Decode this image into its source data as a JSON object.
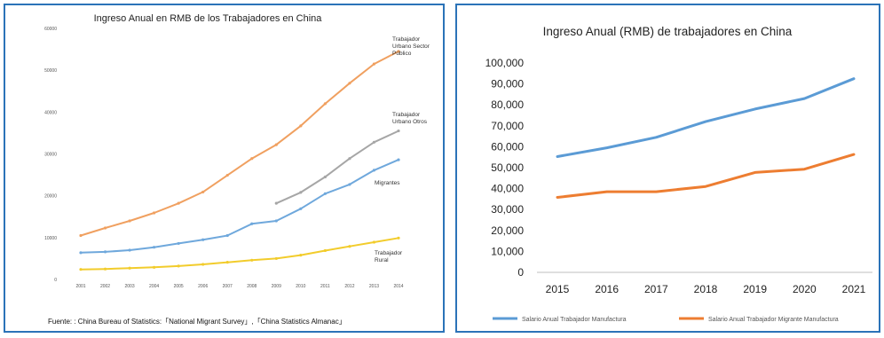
{
  "chart_data": [
    {
      "type": "line",
      "title": "Ingreso Anual en RMB de los Trabajadores en China",
      "x": [
        "2001",
        "2002",
        "2003",
        "2004",
        "2005",
        "2006",
        "2007",
        "2008",
        "2009",
        "2010",
        "2011",
        "2012",
        "2013",
        "2014"
      ],
      "y_ticks": [
        "0",
        "10000",
        "20000",
        "30000",
        "40000",
        "50000",
        "60000"
      ],
      "ylim": [
        0,
        60000
      ],
      "grid": false,
      "source": "Fuente:  : China Bureau of Statistics:「National Migrant Survey」,「China Statistics Almanac」",
      "series": [
        {
          "name": "Trabajador Urbano Sector Público",
          "label_lines": [
            "Trabajador",
            "Urbano Sector",
            "Público"
          ],
          "color": "#f0a060",
          "values": [
            10500,
            12300,
            14000,
            15900,
            18200,
            20900,
            24900,
            28900,
            32200,
            36700,
            42000,
            46900,
            51500,
            54500
          ]
        },
        {
          "name": "Trabajador Urbano Otros",
          "label_lines": [
            "Trabajador",
            "Urbano Otros"
          ],
          "color": "#a6a6a6",
          "values": [
            null,
            null,
            null,
            null,
            null,
            null,
            null,
            null,
            18200,
            20800,
            24500,
            28900,
            32800,
            35500
          ]
        },
        {
          "name": "Migrantes",
          "label_lines": [
            "Migrantes"
          ],
          "color": "#6fa8dc",
          "values": [
            6400,
            6600,
            7000,
            7700,
            8600,
            9500,
            10500,
            13300,
            14000,
            16900,
            20500,
            22700,
            26100,
            28600
          ]
        },
        {
          "name": "Trabajador Rural",
          "label_lines": [
            "Trabajador",
            "Rural"
          ],
          "color": "#f2cc2c",
          "values": [
            2400,
            2500,
            2700,
            2900,
            3200,
            3600,
            4100,
            4600,
            5000,
            5800,
            6900,
            7900,
            8900,
            9900
          ]
        }
      ]
    },
    {
      "type": "line",
      "title": "Ingreso Anual (RMB) de trabajadores en China",
      "x": [
        "2015",
        "2016",
        "2017",
        "2018",
        "2019",
        "2020",
        "2021"
      ],
      "y_ticks": [
        "0",
        "10,000",
        "20,000",
        "30,000",
        "40,000",
        "50,000",
        "60,000",
        "70,000",
        "80,000",
        "90,000",
        "100,000"
      ],
      "ylim": [
        0,
        100000
      ],
      "grid": false,
      "legend": "bottom",
      "series": [
        {
          "name": "Salario Anual Trabajador Manufactura",
          "color": "#5b9bd5",
          "values": [
            55300,
            59500,
            64500,
            72000,
            78000,
            83000,
            92500
          ]
        },
        {
          "name": "Salario Anual Trabajador Migrante Manufactura",
          "color": "#ed7d31",
          "values": [
            35800,
            38500,
            38500,
            41000,
            47700,
            49300,
            56300
          ]
        }
      ]
    }
  ]
}
